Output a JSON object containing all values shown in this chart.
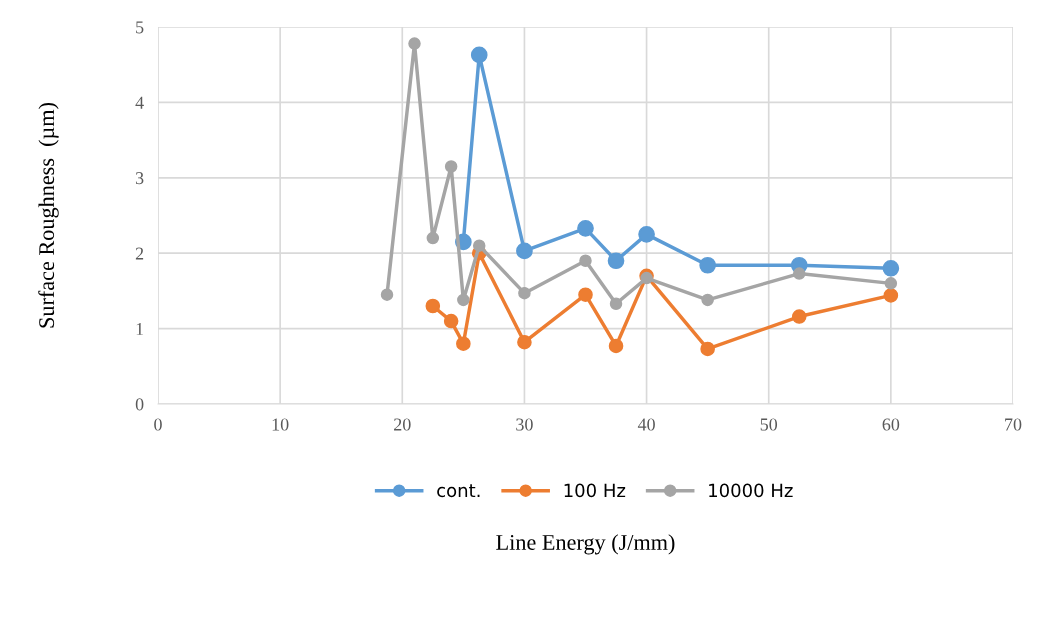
{
  "chart_data": {
    "type": "line",
    "xlabel": "Line Energy (J/mm)",
    "ylabel": "Surface Roughness  (µm)",
    "xlim": [
      0,
      70
    ],
    "xticks": [
      0,
      10,
      20,
      30,
      40,
      50,
      60,
      70
    ],
    "ylim": [
      0,
      5
    ],
    "yticks": [
      0,
      1,
      2,
      3,
      4,
      5
    ],
    "grid": true,
    "legend": "bottom",
    "marker": "circle",
    "line_style": "solid",
    "series": [
      {
        "name": "cont.",
        "color": "#5b9bd5",
        "x": [
          25,
          26.3,
          30,
          35,
          37.5,
          40,
          45,
          52.5,
          60
        ],
        "values": [
          2.15,
          4.63,
          2.03,
          2.33,
          1.9,
          2.25,
          1.84,
          1.84,
          1.8
        ]
      },
      {
        "name": "100 Hz",
        "color": "#ed7d31",
        "x": [
          22.5,
          24,
          25,
          26.3,
          30,
          35,
          37.5,
          40,
          45,
          52.5,
          60
        ],
        "values": [
          1.3,
          1.1,
          0.8,
          2.0,
          0.82,
          1.45,
          0.77,
          1.7,
          0.73,
          1.16,
          1.44
        ]
      },
      {
        "name": "10000 Hz",
        "color": "#a5a5a5",
        "x": [
          18.75,
          21,
          22.5,
          24,
          25,
          26.3,
          30,
          35,
          37.5,
          40,
          45,
          52.5,
          60
        ],
        "values": [
          1.45,
          4.78,
          2.2,
          3.15,
          1.38,
          2.1,
          1.47,
          1.9,
          1.33,
          1.67,
          1.38,
          1.73,
          1.6
        ]
      }
    ]
  }
}
